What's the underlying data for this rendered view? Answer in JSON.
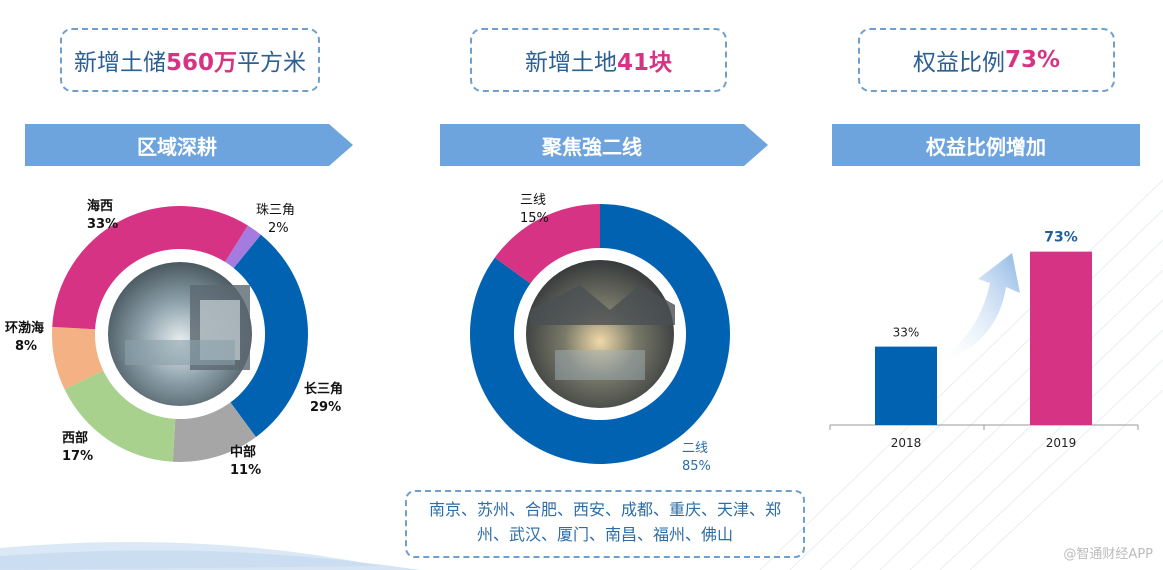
{
  "stats": [
    {
      "prefix": "新增土储 ",
      "highlight": "560万",
      "suffix": "平方米"
    },
    {
      "prefix": "新增土地 ",
      "highlight": "41块",
      "suffix": ""
    },
    {
      "prefix": "权益比例 ",
      "highlight": "73%",
      "suffix": ""
    }
  ],
  "banners": [
    "区域深耕",
    "聚焦強二线",
    "权益比例增加"
  ],
  "cities": "南京、苏州、合肥、西安、成都、重庆、天津、郑州、武汉、厦门、南昌、福州、佛山",
  "watermark": "@智通财经APP",
  "colors": {
    "blue": "#0062b1",
    "magenta": "#d63384",
    "light_blue": "#6ea4dd"
  },
  "chart_data": [
    {
      "type": "pie",
      "variant": "donut",
      "labels": [
        "珠三角",
        "长三角",
        "中部",
        "西部",
        "环渤海",
        "海西"
      ],
      "values": [
        2,
        29,
        11,
        17,
        8,
        33
      ],
      "value_labels": [
        "2%",
        "29%",
        "11%",
        "17%",
        "8%",
        "33%"
      ],
      "colors": [
        "#a57be0",
        "#0062b1",
        "#a6a6a6",
        "#a9d18e",
        "#f4b183",
        "#d63384"
      ]
    },
    {
      "type": "pie",
      "variant": "donut",
      "labels": [
        "二线",
        "三线"
      ],
      "values": [
        85,
        15
      ],
      "value_labels": [
        "85%",
        "15%"
      ],
      "colors": [
        "#0062b1",
        "#d63384"
      ]
    },
    {
      "type": "bar",
      "categories": [
        "2018",
        "2019"
      ],
      "values": [
        33,
        73
      ],
      "value_labels": [
        "33%",
        "73%"
      ],
      "colors": [
        "#0062b1",
        "#d63384"
      ],
      "ylim": [
        0,
        80
      ]
    }
  ]
}
